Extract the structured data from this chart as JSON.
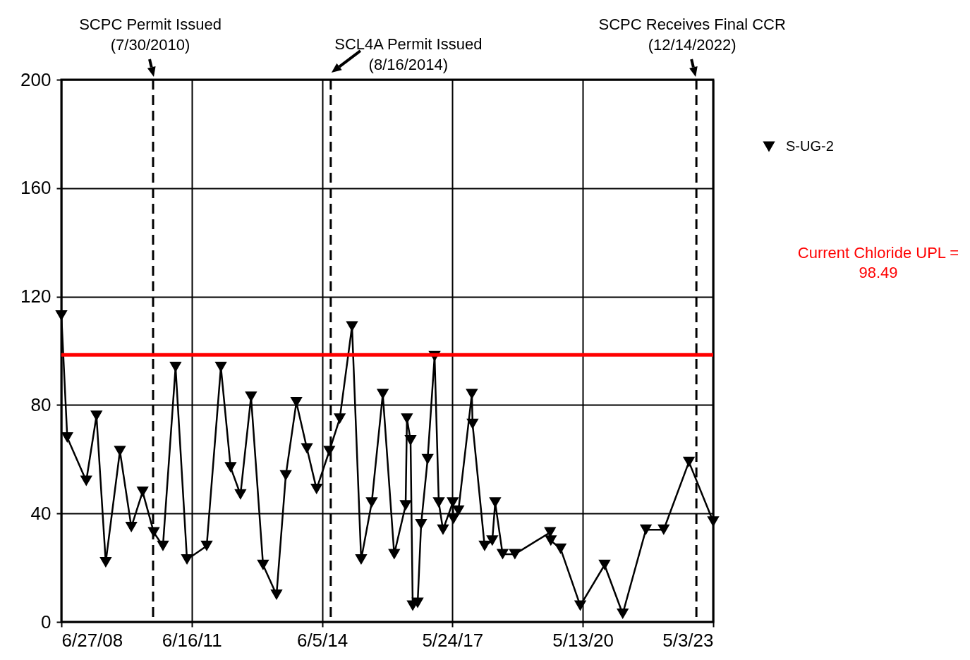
{
  "chart_data": {
    "type": "line",
    "x": [
      "2008-06-27",
      "2008-08-15",
      "2009-01-20",
      "2009-04-15",
      "2009-07-01",
      "2009-10-27",
      "2010-01-30",
      "2010-05-04",
      "2010-08-05",
      "2010-10-20",
      "2011-02-02",
      "2011-05-08",
      "2011-10-19",
      "2012-02-14",
      "2012-05-05",
      "2012-07-26",
      "2012-10-22",
      "2013-01-30",
      "2013-05-22",
      "2013-08-07",
      "2013-11-03",
      "2014-01-30",
      "2014-04-20",
      "2014-08-04",
      "2014-10-30",
      "2015-02-09",
      "2015-04-26",
      "2015-07-23",
      "2015-10-23",
      "2016-01-26",
      "2016-04-30",
      "2016-05-11",
      "2016-06-10",
      "2016-06-28",
      "2016-08-08",
      "2016-09-06",
      "2016-10-30",
      "2016-12-27",
      "2017-01-31",
      "2017-03-07",
      "2017-05-27",
      "2017-06-02",
      "2017-07-13",
      "2017-11-02",
      "2017-11-08",
      "2018-02-16",
      "2018-04-21",
      "2018-05-15",
      "2018-07-16",
      "2018-10-26",
      "2019-08-15",
      "2019-08-21",
      "2019-11-10",
      "2020-04-22",
      "2020-11-10",
      "2021-04-10",
      "2021-10-20",
      "2022-03-17",
      "2022-10-13",
      "2023-05-03"
    ],
    "series": [
      {
        "name": "S-UG-2",
        "color": "#000000",
        "values": [
          113,
          68,
          52,
          76,
          22,
          63,
          35,
          48,
          33,
          28,
          94,
          23,
          28,
          94,
          57,
          47,
          83,
          21,
          10,
          54,
          81,
          64,
          49,
          63,
          75,
          109,
          23,
          44,
          84,
          25,
          43,
          75,
          67,
          6,
          7,
          36,
          60,
          98,
          44,
          34,
          44,
          38,
          41,
          84,
          73,
          28,
          30,
          44,
          25,
          25,
          33,
          30,
          27,
          6,
          21,
          3,
          34,
          34,
          59,
          37
        ]
      }
    ],
    "xlim": [
      "2008-06-27",
      "2023-05-03"
    ],
    "xticks": [
      {
        "value": "2008-06-27",
        "label": "6/27/08"
      },
      {
        "value": "2011-06-16",
        "label": "6/16/11"
      },
      {
        "value": "2014-06-05",
        "label": "6/5/14"
      },
      {
        "value": "2017-05-24",
        "label": "5/24/17"
      },
      {
        "value": "2020-05-13",
        "label": "5/13/20"
      },
      {
        "value": "2023-05-03",
        "label": "5/3/23"
      }
    ],
    "ylim": [
      0,
      200
    ],
    "yticks": [
      0,
      40,
      80,
      120,
      160,
      200
    ],
    "grid": true,
    "legend": "right",
    "marker": "triangle",
    "line_style": "solid",
    "ref_lines": [
      {
        "axis": "x",
        "value": "2010-07-30",
        "label": "SCPC Permit Issued (7/30/2010)",
        "color": "#000000",
        "line_style": "dashed"
      },
      {
        "axis": "x",
        "value": "2014-08-16",
        "label": "SCL4A Permit Issued (8/16/2014)",
        "color": "#000000",
        "line_style": "dashed"
      },
      {
        "axis": "x",
        "value": "2022-12-14",
        "label": "SCPC Receives Final CCR (12/14/2022)",
        "color": "#000000",
        "line_style": "dashed"
      },
      {
        "axis": "y",
        "value": 98.49,
        "label": "Current Chloride UPL = 98.49",
        "color": "#ff0000",
        "line_style": "solid"
      }
    ]
  }
}
